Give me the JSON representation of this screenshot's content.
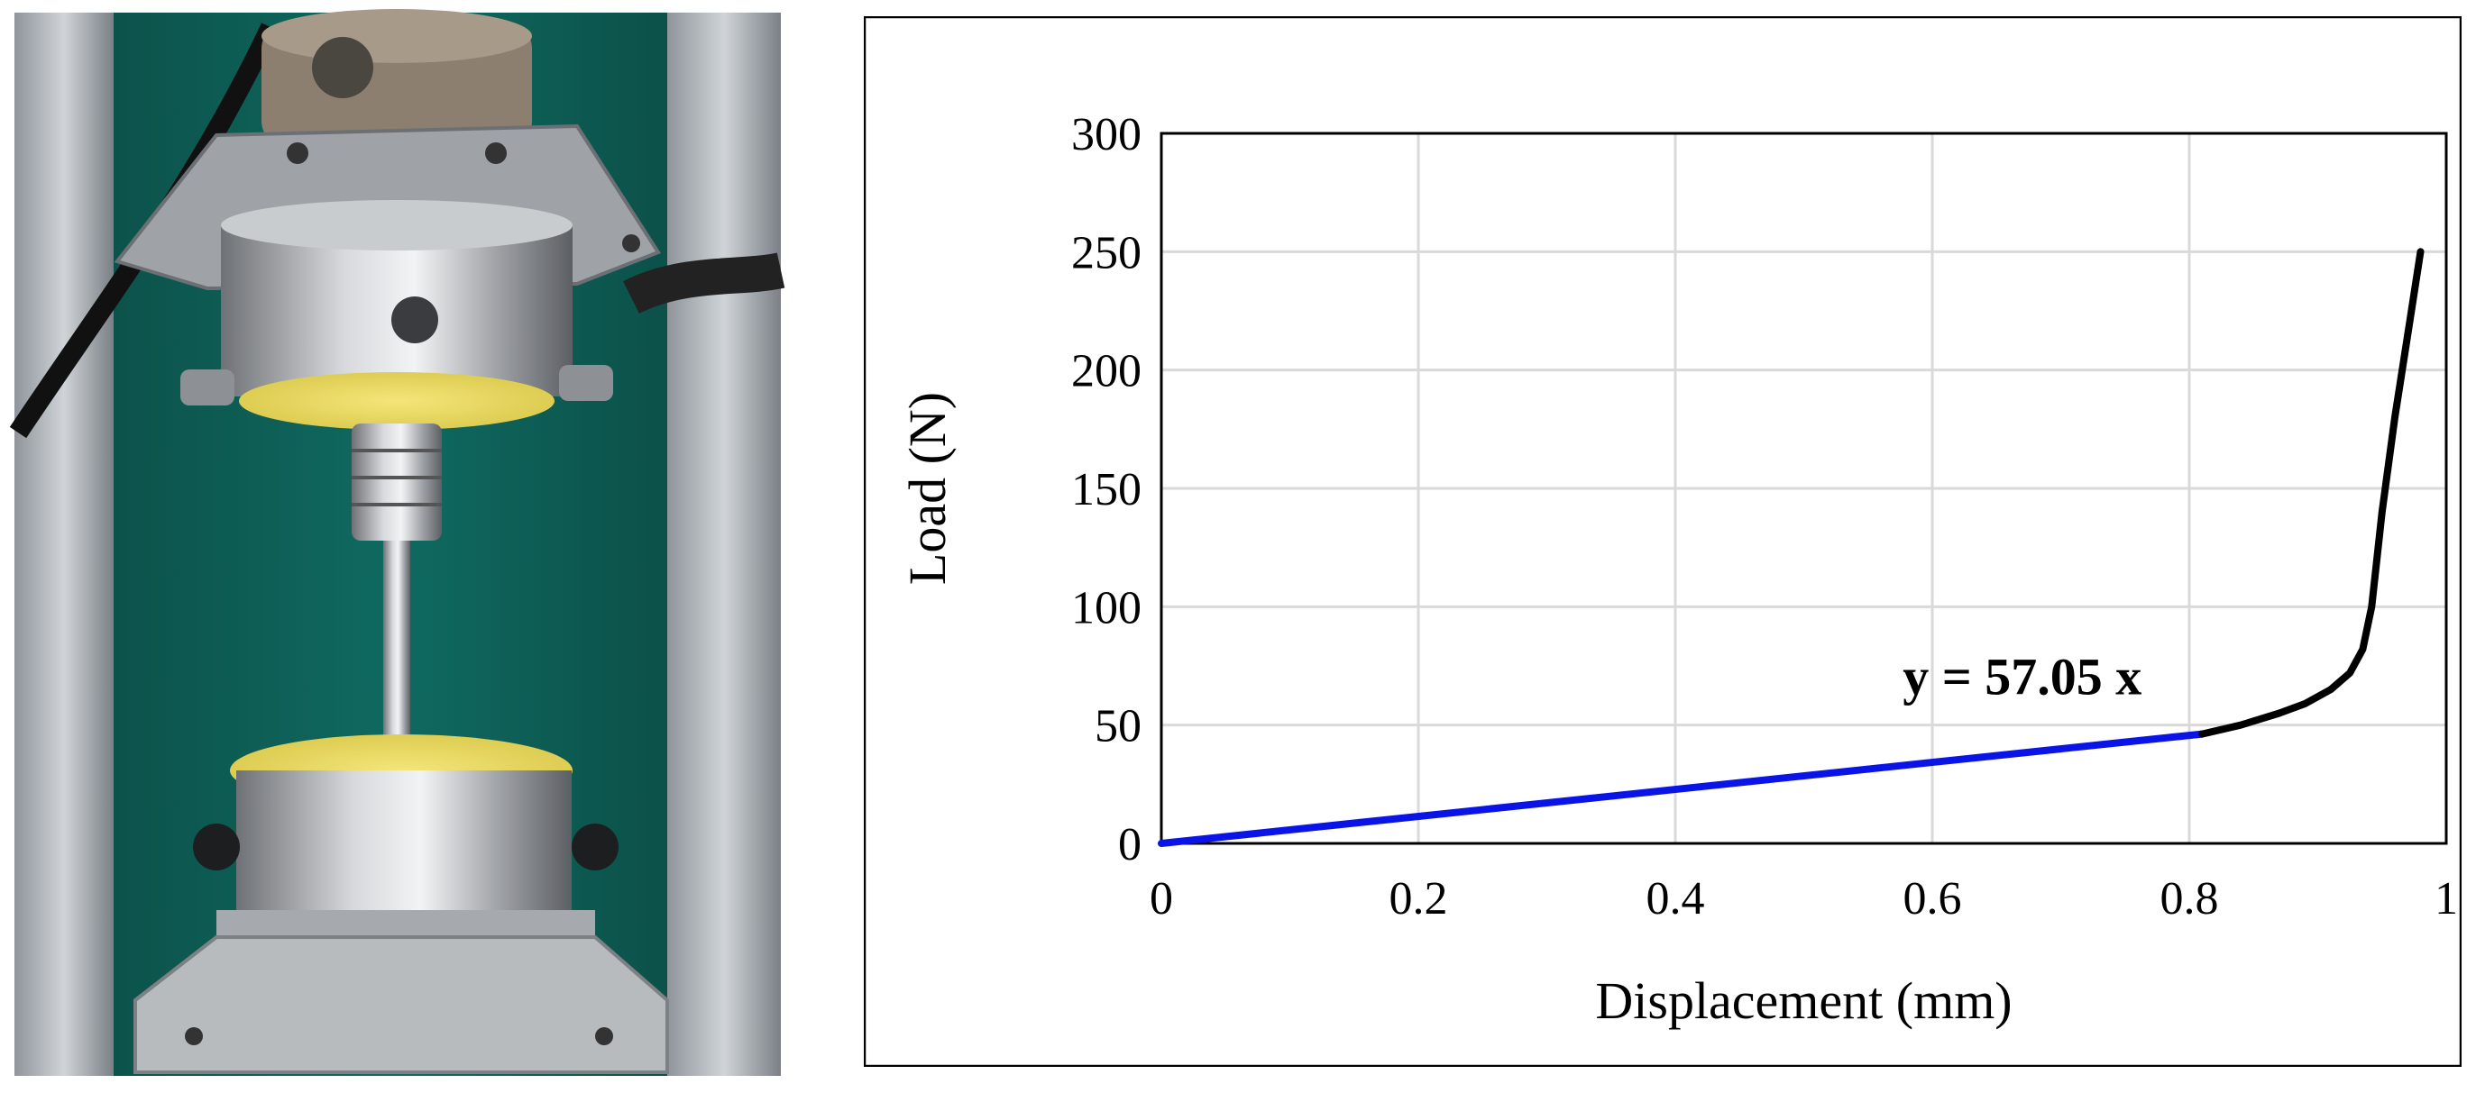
{
  "photo": {
    "subject": "test-fixture-photo"
  },
  "chart_data": {
    "type": "line",
    "title": "",
    "xlabel": "Displacement (mm)",
    "ylabel": "Load (N)",
    "xlim": [
      0,
      1
    ],
    "ylim": [
      0,
      300
    ],
    "x_ticks": [
      "0",
      "0.2",
      "0.4",
      "0.6",
      "0.8",
      "1"
    ],
    "y_ticks": [
      "0",
      "50",
      "100",
      "150",
      "200",
      "250",
      "300"
    ],
    "grid": true,
    "series": [
      {
        "color": "#0a14e6",
        "x": [
          0,
          0.81
        ],
        "y": [
          0,
          46.2
        ]
      },
      {
        "color": "#000000",
        "x": [
          0.81,
          0.84,
          0.87,
          0.89,
          0.91,
          0.925,
          0.935,
          0.942,
          0.95,
          0.96,
          0.97,
          0.98
        ],
        "y": [
          46.2,
          50,
          55,
          59,
          65,
          72,
          82,
          100,
          140,
          180,
          215,
          250
        ]
      }
    ],
    "annotations": [
      {
        "text": "y = 57.05 x",
        "x": 0.67,
        "y": 63
      }
    ],
    "colors": {
      "linear_fit": "#0a14e6",
      "curve": "#000000",
      "grid": "#d9d9d9"
    }
  }
}
